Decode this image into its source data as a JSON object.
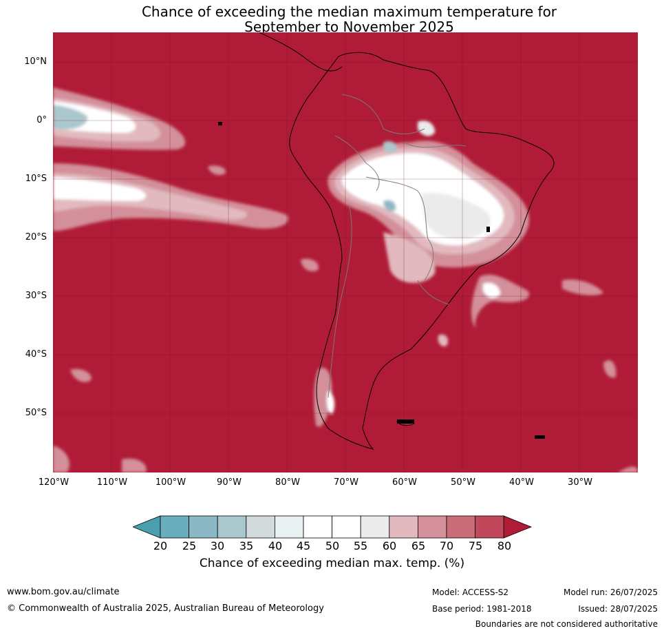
{
  "title_line1": "Chance of exceeding the median maximum temperature for",
  "title_line2": "September to November 2025",
  "lat_labels": [
    "10°N",
    "0°",
    "10°S",
    "20°S",
    "30°S",
    "40°S",
    "50°S"
  ],
  "lon_labels": [
    "120°W",
    "110°W",
    "100°W",
    "90°W",
    "80°W",
    "70°W",
    "60°W",
    "50°W",
    "40°W",
    "30°W"
  ],
  "colorbar": {
    "ticks": [
      "20",
      "25",
      "30",
      "35",
      "40",
      "45",
      "50",
      "55",
      "60",
      "65",
      "70",
      "75",
      "80"
    ],
    "colors": [
      "#4a9fae",
      "#6aaebd",
      "#8ab8c4",
      "#aac7cd",
      "#d2dadb",
      "#e9f0f2",
      "#ffffff",
      "#ffffff",
      "#ebebec",
      "#e1b9bf",
      "#d3909a",
      "#c96d7a",
      "#c0485a",
      "#b01c37"
    ],
    "title": "Chance of exceeding median max. temp. (%)"
  },
  "footer": {
    "url": "www.bom.gov.au/climate",
    "copyright": "© Commonwealth of Australia 2025, Australian Bureau of Meteorology",
    "model": "Model: ACCESS-S2",
    "base_period": "Base period: 1981-2018",
    "model_run": "Model run: 26/07/2025",
    "issued": "Issued: 28/07/2025",
    "disclaimer": "Boundaries are not considered authoritative"
  }
}
